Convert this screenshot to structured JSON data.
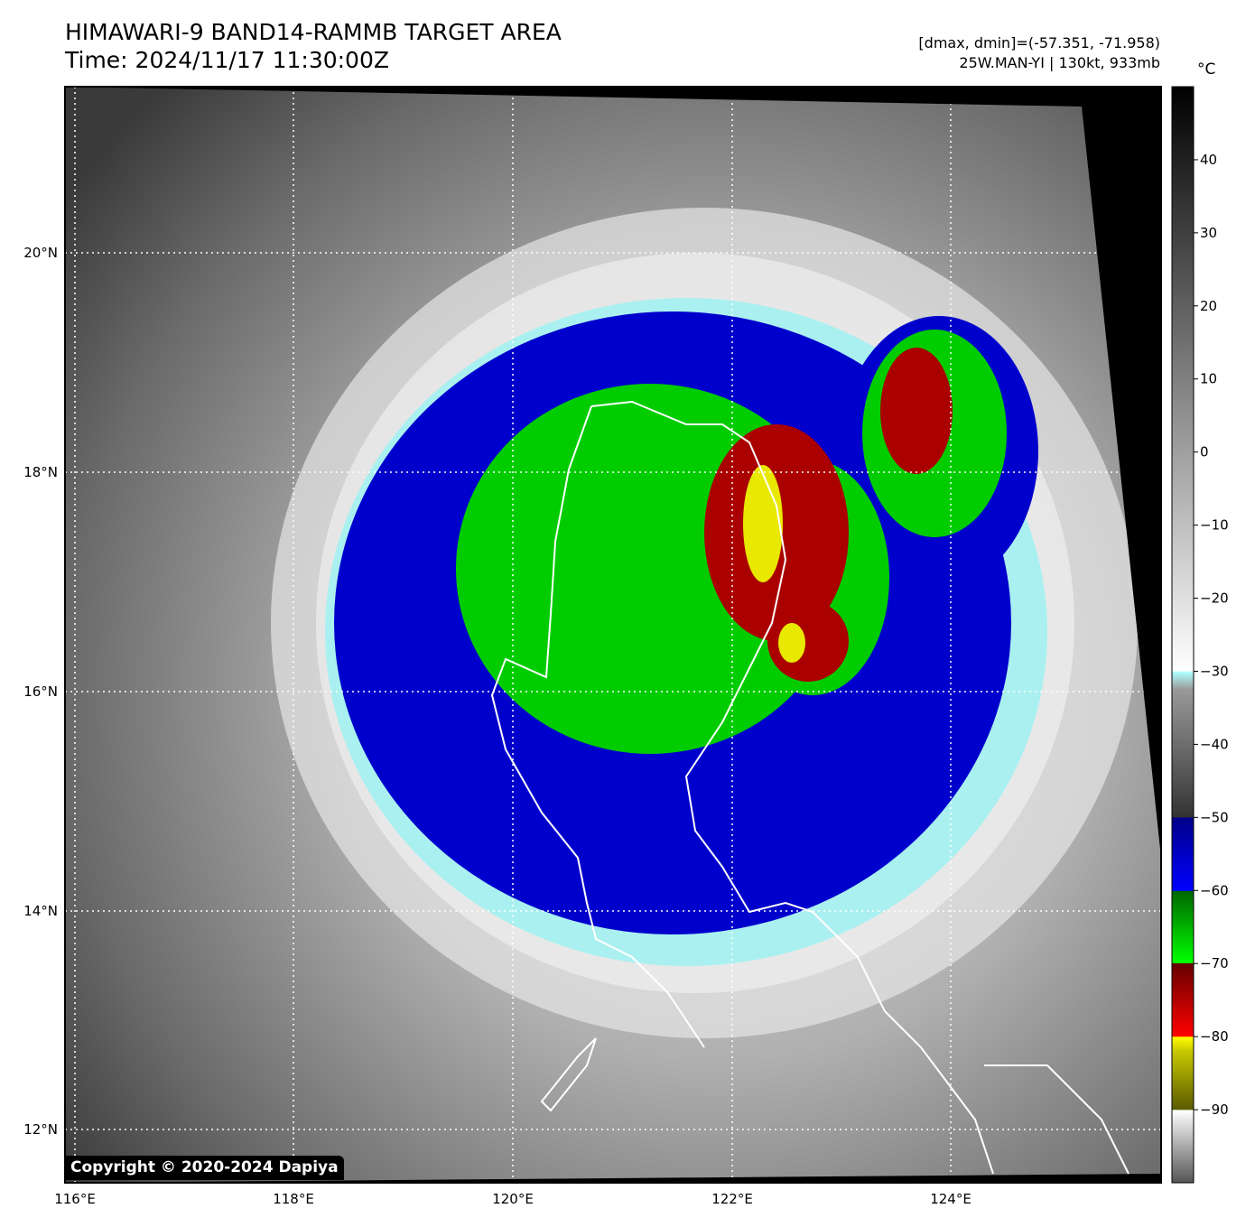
{
  "header": {
    "title_line1": "HIMAWARI-9 BAND14-RAMMB TARGET AREA",
    "title_line2": "Time: 2024/11/17 11:30:00Z",
    "info_line1": "[dmax, dmin]=(-57.351, -71.958)",
    "info_line2": "25W.MAN-YI | 130kt, 933mb"
  },
  "map": {
    "lat_labels": [
      "20°N",
      "18°N",
      "16°N",
      "14°N",
      "12°N"
    ],
    "lon_labels": [
      "116°E",
      "118°E",
      "120°E",
      "122°E",
      "124°E"
    ],
    "lat_range": [
      11.5,
      21.5
    ],
    "lon_range": [
      115.9,
      125.9
    ],
    "storm_center": {
      "lat": 16.9,
      "lon": 121.3
    }
  },
  "colorbar": {
    "unit": "°C",
    "ticks": [
      "40",
      "30",
      "20",
      "10",
      "0",
      "−10",
      "−20",
      "−30",
      "−40",
      "−50",
      "−60",
      "−70",
      "−80",
      "−90"
    ],
    "tick_values": [
      40,
      30,
      20,
      10,
      0,
      -10,
      -20,
      -30,
      -40,
      -50,
      -60,
      -70,
      -80,
      -90
    ],
    "range": [
      -100,
      50
    ]
  },
  "footer": {
    "copyright": "Copyright © 2020-2024 Dapiya"
  },
  "colors": {
    "cold_blue": "#0000cc",
    "green": "#00cc00",
    "red": "#aa0000",
    "yellow": "#e8e800",
    "cyan": "#aaf0f0"
  }
}
